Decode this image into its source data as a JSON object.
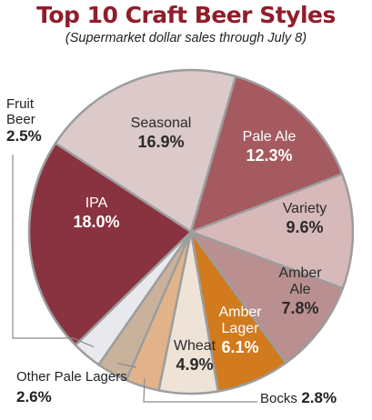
{
  "chart_data": {
    "type": "pie",
    "title": "Top 10 Craft Beer Styles",
    "subtitle": "(Supermarket dollar sales through July 8)",
    "slices": [
      {
        "label": "Seasonal",
        "value": 16.9,
        "display": "16.9%",
        "color": "#dcc9c9",
        "text": "#2a2a2a"
      },
      {
        "label": "Pale Ale",
        "value": 12.3,
        "display": "12.3%",
        "color": "#a45a5f",
        "text": "#ffffff"
      },
      {
        "label": "Variety",
        "value": 9.6,
        "display": "9.6%",
        "color": "#d7b9ba",
        "text": "#2a2a2a"
      },
      {
        "label": "Amber Ale",
        "value": 7.8,
        "display": "7.8%",
        "color": "#ba8f8f",
        "text": "#2a2a2a"
      },
      {
        "label": "Amber Lager",
        "value": 6.1,
        "display": "6.1%",
        "color": "#d17a1e",
        "text": "#ffffff"
      },
      {
        "label": "Wheat",
        "value": 4.9,
        "display": "4.9%",
        "color": "#efe3d7",
        "text": "#2a2a2a"
      },
      {
        "label": "Bocks",
        "value": 2.8,
        "display": "2.8%",
        "color": "#e2b38a",
        "text": "#2a2a2a"
      },
      {
        "label": "Other Pale Lagers",
        "value": 2.6,
        "display": "2.6%",
        "color": "#c9b29b",
        "text": "#2a2a2a"
      },
      {
        "label": "Fruit Beer",
        "value": 2.5,
        "display": "2.5%",
        "color": "#e9e9ed",
        "text": "#2a2a2a"
      },
      {
        "label": "IPA",
        "value": 18.0,
        "display": "18.0%",
        "color": "#8a3340",
        "text": "#ffffff"
      }
    ],
    "inside_labels": [
      {
        "name_lines": [
          "Seasonal"
        ],
        "value": "16.9%"
      },
      {
        "name_lines": [
          "Pale Ale"
        ],
        "value": "12.3%"
      },
      {
        "name_lines": [
          "Variety"
        ],
        "value": "9.6%"
      },
      {
        "name_lines": [
          "Amber",
          "Ale"
        ],
        "value": "7.8%"
      },
      {
        "name_lines": [
          "Amber",
          "Lager"
        ],
        "value": "6.1%"
      },
      {
        "name_lines": [
          "Wheat"
        ],
        "value": "4.9%"
      },
      {
        "name_lines": [
          "IPA"
        ],
        "value": "18.0%"
      }
    ],
    "outside_labels": {
      "fruit_beer": {
        "name_line1": "Fruit",
        "name_line2": "Beer",
        "value": "2.5%"
      },
      "other_pale_lagers": {
        "name": "Other Pale Lagers",
        "value": "2.6%"
      },
      "bocks": {
        "name": "Bocks",
        "value": "2.8%"
      }
    }
  }
}
